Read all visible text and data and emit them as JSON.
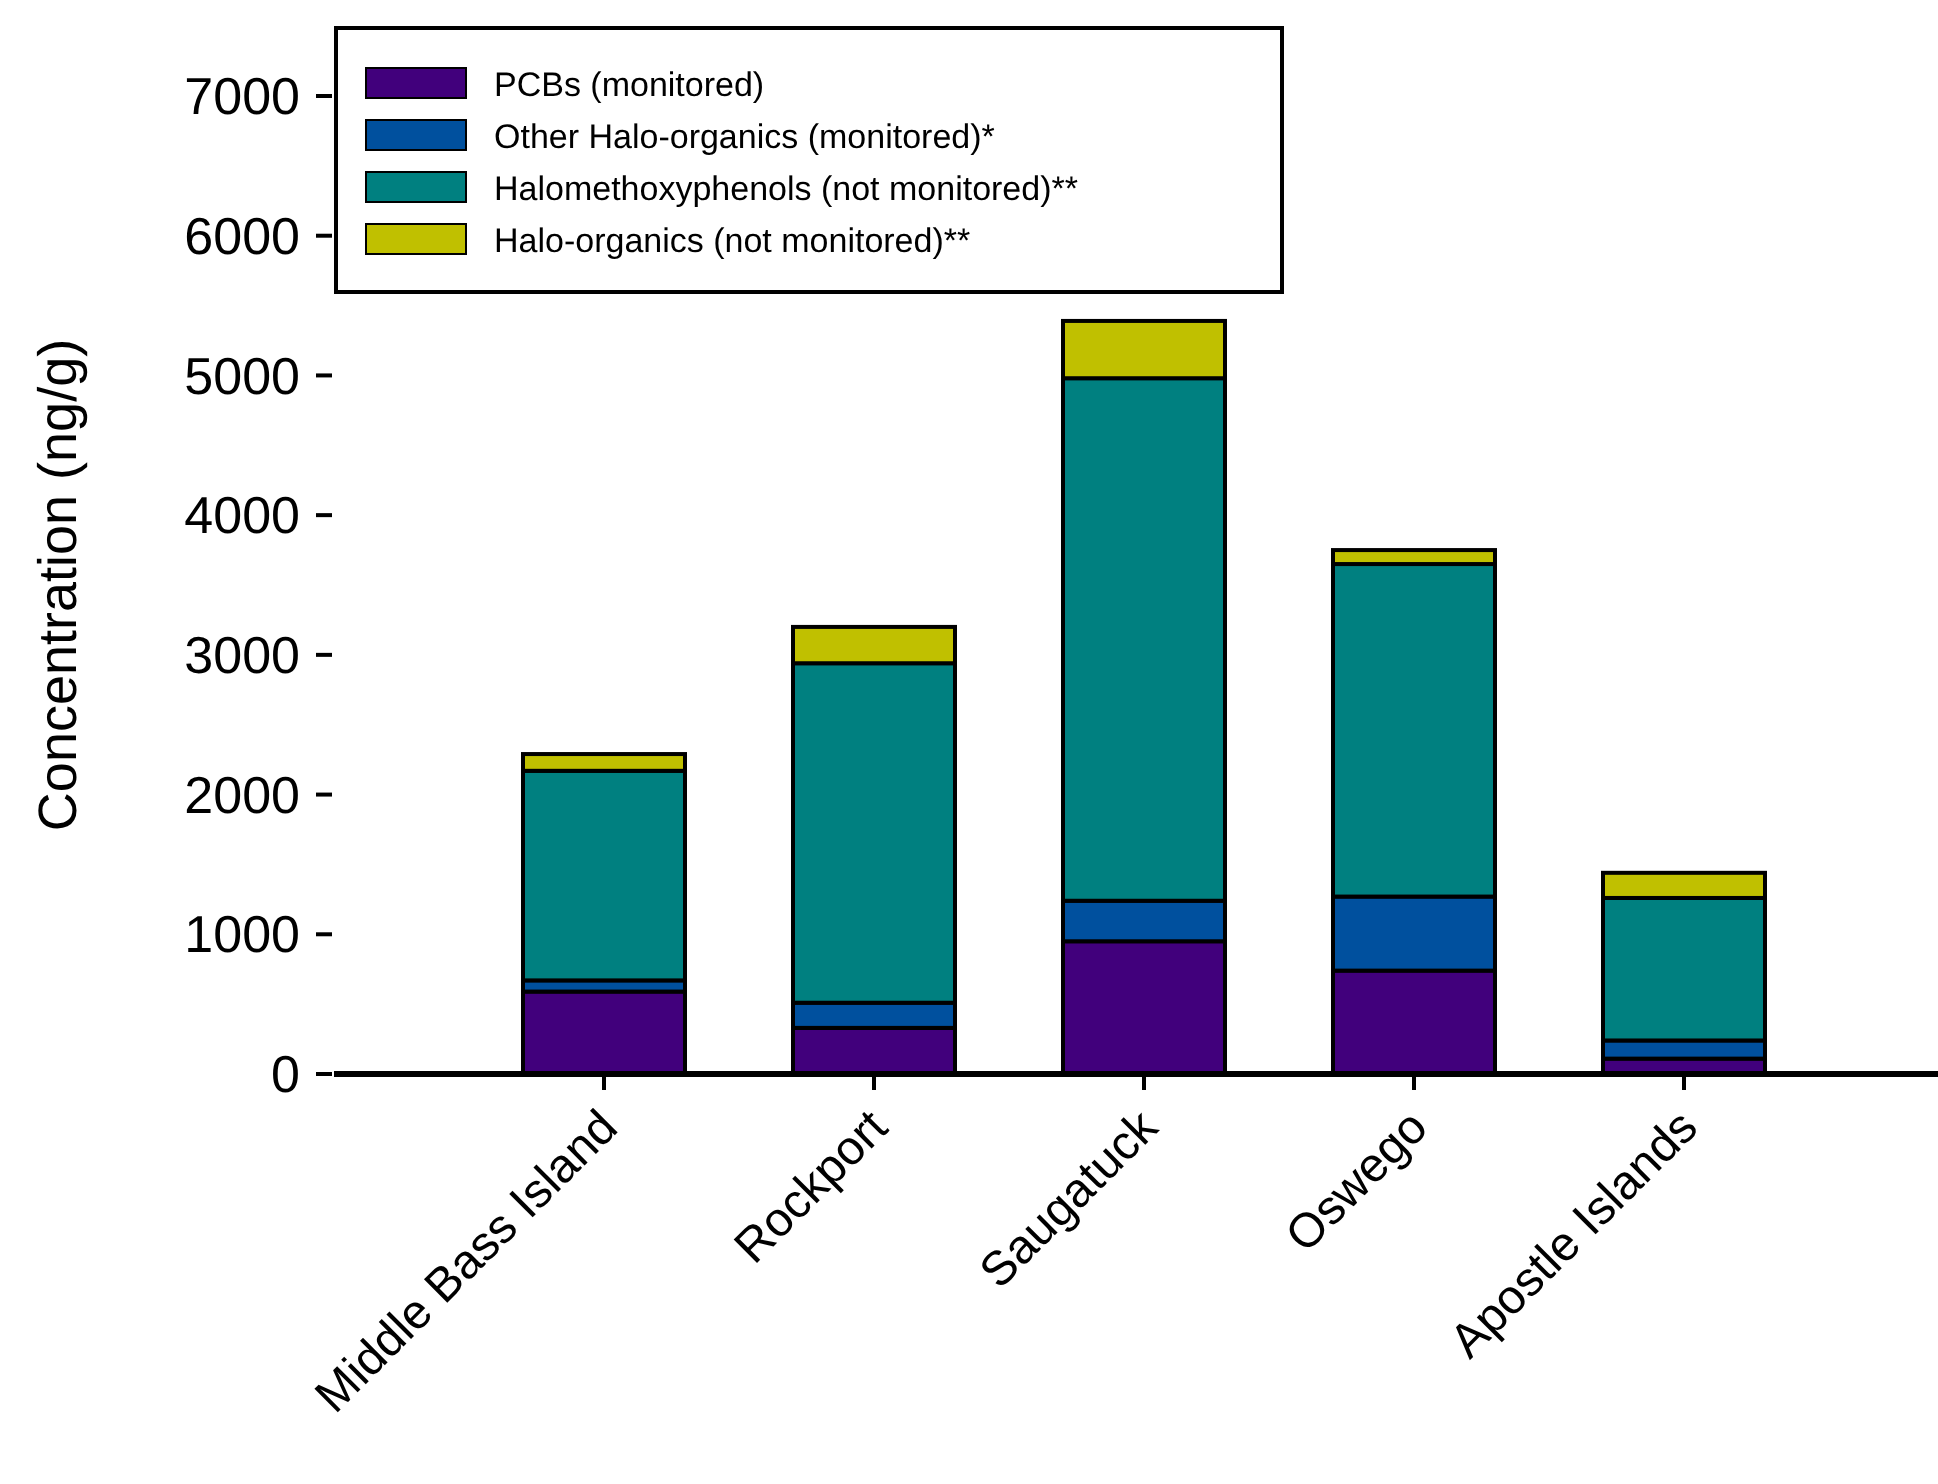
{
  "chart_data": {
    "type": "bar",
    "stacked": true,
    "ylabel": "Concentration (ng/g)",
    "categories": [
      "Middle Bass Island",
      "Rockport",
      "Saugatuck",
      "Oswego",
      "Apostle Islands"
    ],
    "series": [
      {
        "name": "PCBs (monitored)",
        "color": "#41007c",
        "values": [
          590,
          330,
          950,
          740,
          110
        ]
      },
      {
        "name": "Other Halo-organics (monitored)*",
        "color": "#00509e",
        "values": [
          80,
          180,
          290,
          530,
          130
        ]
      },
      {
        "name": "Halomethoxyphenols (not monitored)**",
        "color": "#008080",
        "values": [
          1500,
          2430,
          3740,
          2380,
          1020
        ]
      },
      {
        "name": "Halo-organics (not monitored)**",
        "color": "#c0c000",
        "values": [
          120,
          260,
          410,
          100,
          180
        ]
      }
    ],
    "ylim": [
      0,
      7000
    ],
    "yticks": [
      0,
      1000,
      2000,
      3000,
      4000,
      5000,
      6000,
      7000
    ],
    "legend": "top left",
    "grid": false
  }
}
